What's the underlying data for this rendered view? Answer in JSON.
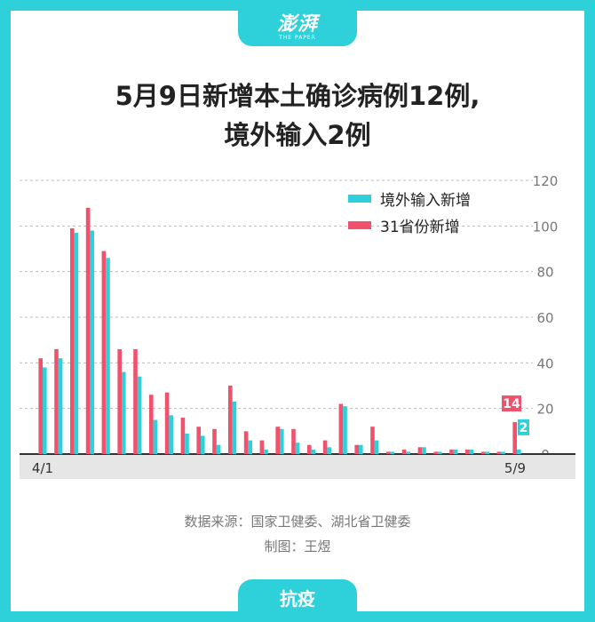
{
  "logo": {
    "name": "澎湃",
    "subtitle": "THE PAPER"
  },
  "title": {
    "line1": "5月9日新增本土确诊病例12例,",
    "line2": "境外输入2例"
  },
  "source": {
    "line1": "数据来源：国家卫健委、湖北省卫健委",
    "line2": "制图：王煜"
  },
  "topic": "抗疫",
  "colors": {
    "imported": "#2ed0da",
    "provincial": "#f0516c",
    "background": "#2ed0da"
  },
  "chart_data": {
    "type": "bar",
    "x_start_label": "4/1",
    "x_end_label": "5/9",
    "ylim": [
      0,
      120
    ],
    "yticks": [
      0,
      20,
      40,
      60,
      80,
      100,
      120
    ],
    "grid": true,
    "legend_position": "top-right",
    "series": [
      {
        "name": "31省份新增",
        "color": "#f0516c",
        "values": [
          42,
          46,
          99,
          108,
          89,
          46,
          46,
          26,
          27,
          16,
          12,
          11,
          30,
          10,
          6,
          12,
          11,
          4,
          6,
          22,
          4,
          12,
          1,
          2,
          3,
          1,
          2,
          2,
          1,
          1,
          14
        ]
      },
      {
        "name": "境外输入新增",
        "color": "#2ed0da",
        "values": [
          38,
          42,
          97,
          98,
          86,
          36,
          34,
          15,
          17,
          9,
          8,
          4,
          23,
          6,
          2,
          11,
          5,
          2,
          3,
          21,
          4,
          6,
          1,
          1,
          3,
          1,
          2,
          2,
          1,
          1,
          2
        ]
      }
    ],
    "annotations": [
      {
        "series": "31省份新增",
        "index": 30,
        "label": "14"
      },
      {
        "series": "境外输入新增",
        "index": 30,
        "label": "2"
      }
    ]
  }
}
